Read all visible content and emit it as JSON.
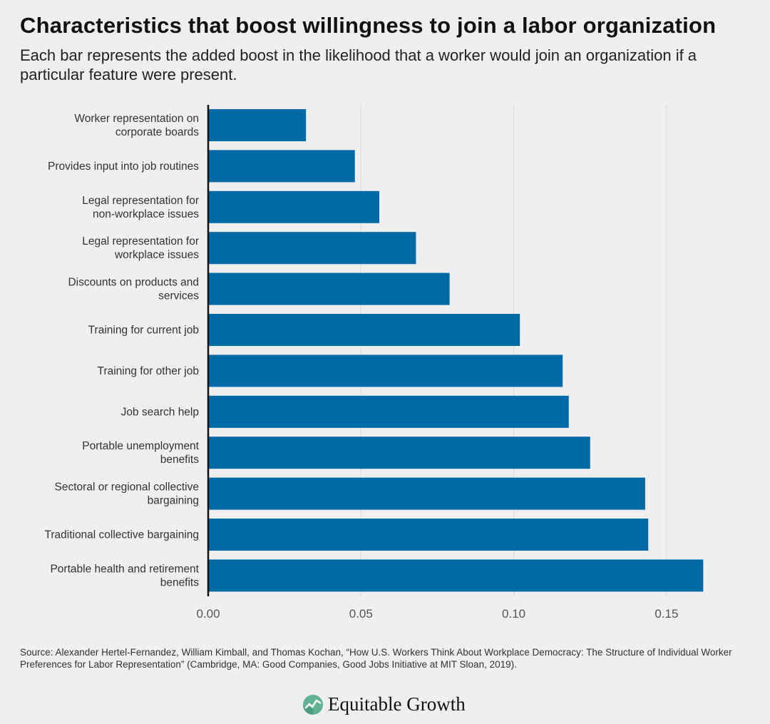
{
  "title": "Characteristics that boost willingness to join a labor organization",
  "subtitle": "Each bar represents the added boost in the likelihood that a worker would join an organization if a particular feature were present.",
  "source": "Source: Alexander Hertel-Fernandez, William Kimball, and Thomas Kochan, “How U.S. Workers Think About Workplace Democracy: The Structure of Individual Worker Preferences for Labor Representation” (Cambridge, MA: Good Companies, Good Jobs Initiative at MIT Sloan, 2019).",
  "logo_text": "Equitable Growth",
  "chart_data": {
    "type": "bar",
    "orientation": "horizontal",
    "categories": [
      [
        "Worker representation on",
        "corporate boards"
      ],
      [
        "Provides input into job routines"
      ],
      [
        "Legal representation for",
        "non-workplace issues"
      ],
      [
        "Legal representation for",
        "workplace issues"
      ],
      [
        "Discounts on products and",
        "services"
      ],
      [
        "Training for current job"
      ],
      [
        "Training for other job"
      ],
      [
        "Job search help"
      ],
      [
        "Portable unemployment",
        "benefits"
      ],
      [
        "Sectoral or regional collective",
        "bargaining"
      ],
      [
        "Traditional collective bargaining"
      ],
      [
        "Portable health and retirement",
        "benefits"
      ]
    ],
    "values": [
      0.032,
      0.048,
      0.056,
      0.068,
      0.079,
      0.102,
      0.116,
      0.118,
      0.125,
      0.143,
      0.144,
      0.162
    ],
    "xlim": [
      0,
      0.165
    ],
    "xticks": [
      "0.00",
      "0.05",
      "0.10",
      "0.15"
    ],
    "xtick_values": [
      0,
      0.05,
      0.1,
      0.15
    ],
    "grid": "vertical",
    "bar_color": "#006aa7"
  }
}
